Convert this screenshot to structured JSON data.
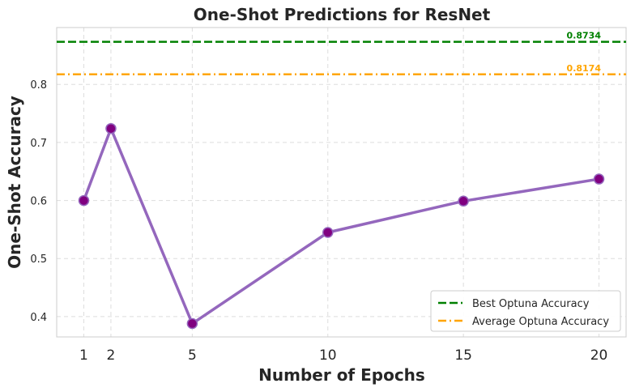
{
  "chart_data": {
    "type": "line",
    "title": "One-Shot Predictions for ResNet",
    "xlabel": "Number of Epochs",
    "ylabel": "One-Shot Accuracy",
    "x": [
      1,
      2,
      5,
      10,
      15,
      20
    ],
    "x_ticks": [
      "1",
      "2",
      "5",
      "10",
      "15",
      "20"
    ],
    "xlim": [
      0,
      21
    ],
    "ylim": [
      0.365,
      0.898
    ],
    "y_ticks": [
      "0.4",
      "0.5",
      "0.6",
      "0.7",
      "0.8"
    ],
    "y_tick_values": [
      0.4,
      0.5,
      0.6,
      0.7,
      0.8
    ],
    "grid": true,
    "series": [
      {
        "values": [
          0.6,
          0.724,
          0.388,
          0.545,
          0.599,
          0.637
        ],
        "color": "#9467bd",
        "marker_color": "#800080"
      }
    ],
    "reference_lines": [
      {
        "name": "Best Optuna Accuracy",
        "value": 0.8734,
        "label": "0.8734",
        "color": "#008000",
        "style": "dashed"
      },
      {
        "name": "Average Optuna Accuracy",
        "value": 0.8174,
        "label": "0.8174",
        "color": "#FFA500",
        "style": "dashdot"
      }
    ],
    "legend_position": "lower-right"
  }
}
